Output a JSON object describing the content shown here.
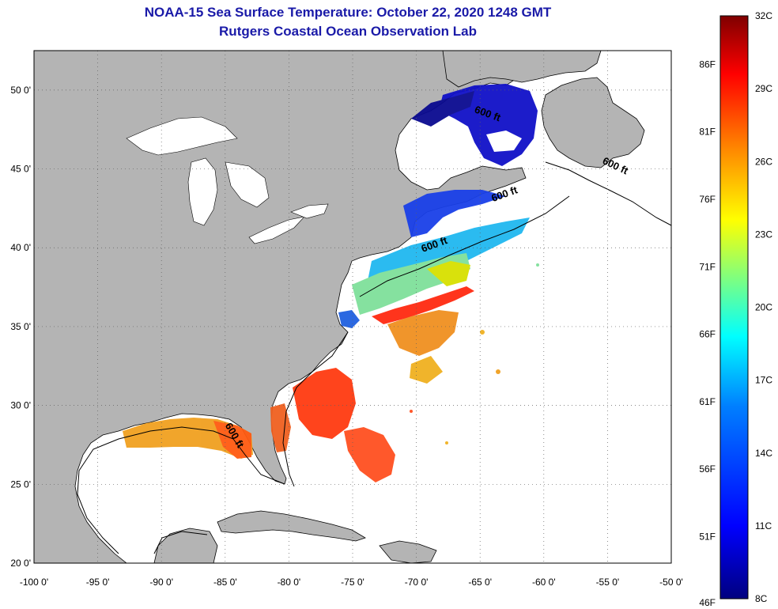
{
  "header": {
    "title_line1": "NOAA-15 Sea Surface Temperature:  October 22, 2020 1248 GMT",
    "title_line2": "Rutgers Coastal Ocean Observation Lab"
  },
  "axes": {
    "lon_labels": [
      "-100 0'",
      "-95 0'",
      "-90 0'",
      "-85 0'",
      "-80 0'",
      "-75 0'",
      "-70 0'",
      "-65 0'",
      "-60 0'",
      "-55 0'",
      "-50 0'"
    ],
    "lon_values": [
      -100,
      -95,
      -90,
      -85,
      -80,
      -75,
      -70,
      -65,
      -60,
      -55,
      -50
    ],
    "lat_labels": [
      "20 0'",
      "25 0'",
      "30 0'",
      "35 0'",
      "40 0'",
      "45 0'",
      "50 0'"
    ],
    "lat_values": [
      20,
      25,
      30,
      35,
      40,
      45,
      50
    ],
    "lon_range": [
      -100,
      -50
    ],
    "lat_range": [
      20,
      52.5
    ],
    "grid": "dotted"
  },
  "contour_labels": [
    {
      "text": "600 ft",
      "lon": -64.5,
      "lat": 48.3
    },
    {
      "text": "600 ft",
      "lon": -54.5,
      "lat": 45.0
    },
    {
      "text": "600 ft",
      "lon": -63.0,
      "lat": 43.2
    },
    {
      "text": "600 ft",
      "lon": -68.5,
      "lat": 40.0
    },
    {
      "text": "600 ft",
      "lon": -84.5,
      "lat": 28.0
    }
  ],
  "colorbar": {
    "fahrenheit_labels": [
      "86F",
      "81F",
      "76F",
      "71F",
      "66F",
      "61F",
      "56F",
      "51F",
      "46F"
    ],
    "celsius_labels": [
      "32C",
      "29C",
      "26C",
      "23C",
      "20C",
      "17C",
      "14C",
      "11C",
      "8C"
    ],
    "min_c": 8,
    "max_c": 32,
    "colors": [
      "#00007f",
      "#0000ff",
      "#007fff",
      "#00ffff",
      "#7fff7f",
      "#ffff00",
      "#ff7f00",
      "#ff0000",
      "#7f0000"
    ]
  },
  "colors": {
    "land": "#b4b4b4",
    "water": "#ffffff",
    "title": "#1a1aa8"
  }
}
